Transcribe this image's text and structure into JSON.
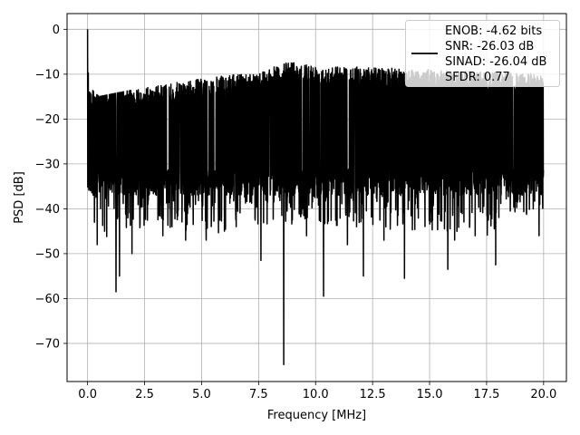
{
  "chart_data": {
    "type": "line",
    "title": "",
    "xlabel": "Frequency [MHz]",
    "ylabel": "PSD [dB]",
    "xlim": [
      -0.9,
      21.0
    ],
    "ylim": [
      -78.5,
      3.5
    ],
    "xticks": [
      0.0,
      2.5,
      5.0,
      7.5,
      10.0,
      12.5,
      15.0,
      17.5,
      20.0
    ],
    "xtick_labels": [
      "0.0",
      "2.5",
      "5.0",
      "7.5",
      "10.0",
      "12.5",
      "15.0",
      "17.5",
      "20.0"
    ],
    "yticks": [
      0,
      -10,
      -20,
      -30,
      -40,
      -50,
      -60,
      -70
    ],
    "ytick_labels": [
      "0",
      "−10",
      "−20",
      "−30",
      "−40",
      "−50",
      "−60",
      "−70"
    ],
    "grid": true,
    "legend_position": "top-right",
    "line_color": "#000000",
    "legend_entries": [
      "ENOB: -4.62 bits",
      "SNR: -26.03 dB",
      "SINAD: -26.04 dB",
      "SFDR: 0.77"
    ],
    "series": [
      {
        "x_range": [
          0.0,
          20.0
        ],
        "peak": {
          "x": 0.0,
          "y": 0.0
        },
        "upper_envelope": {
          "x": [
            0.0,
            0.05,
            0.1,
            0.5,
            2.5,
            5.0,
            7.5,
            9.0,
            10.0,
            12.5,
            15.0,
            17.5,
            20.0
          ],
          "y": [
            0.0,
            -10.0,
            -13.0,
            -15.0,
            -13.0,
            -11.0,
            -9.5,
            -7.0,
            -8.0,
            -8.5,
            -9.0,
            -9.5,
            -10.0
          ]
        },
        "lower_envelope": {
          "x": [
            0.0,
            0.5,
            2.5,
            5.0,
            7.5,
            10.0,
            12.5,
            15.0,
            17.5,
            20.0
          ],
          "y": [
            -12.0,
            -47.0,
            -44.0,
            -46.0,
            -44.0,
            -43.0,
            -45.0,
            -45.0,
            -46.0,
            -40.0
          ]
        },
        "typical_range": [
          -37.0,
          -13.0
        ],
        "deep_nulls": {
          "x": [
            0.3,
            0.42,
            0.75,
            1.25,
            1.4,
            1.95,
            3.3,
            3.7,
            4.3,
            5.2,
            6.0,
            7.6,
            8.6,
            9.6,
            10.35,
            11.4,
            12.1,
            13.0,
            13.9,
            15.8,
            16.1,
            17.0,
            17.9,
            19.8
          ],
          "y": [
            -43.0,
            -48.0,
            -45.0,
            -58.5,
            -55.0,
            -50.0,
            -46.0,
            -44.0,
            -47.0,
            -47.0,
            -45.0,
            -51.5,
            -74.7,
            -46.0,
            -59.5,
            -48.0,
            -55.0,
            -47.0,
            -55.5,
            -53.5,
            -47.0,
            -46.0,
            -52.5,
            -46.0
          ]
        }
      }
    ]
  }
}
